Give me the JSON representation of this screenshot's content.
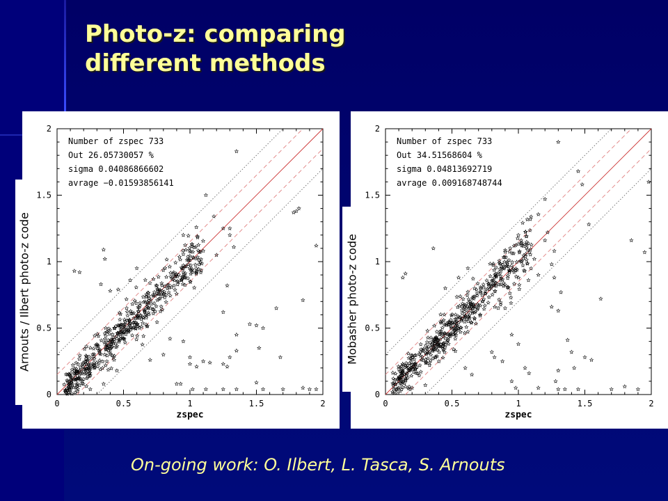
{
  "slide": {
    "title_line1": "Photo-z: comparing",
    "title_line2": "different methods",
    "footer": "On-going work: O. Ilbert, L. Tasca, S. Arnouts",
    "colors": {
      "background": "#000066",
      "title": "#ffff99",
      "footer": "#ffff99"
    }
  },
  "chart_data": [
    {
      "type": "scatter",
      "xlabel": "zspec",
      "ylabel": "Arnouts / Ilbert photo-z code",
      "xlim": [
        0,
        2
      ],
      "ylim": [
        0,
        2
      ],
      "xticks": [
        "0",
        "0.5",
        "1",
        "1.5",
        "2"
      ],
      "yticks": [
        "0",
        "0.5",
        "1",
        "1.5",
        "2"
      ],
      "stats": [
        "Number of zspec 733",
        "Out 26.05730057 %",
        "sigma 0.04086866602",
        "avrage −0.01593856141"
      ],
      "marker": "star",
      "reference_lines": [
        "1:1 line",
        "dashed envelope",
        "dotted envelope"
      ],
      "outliers": [
        [
          0.35,
          1.09
        ],
        [
          0.36,
          1.02
        ],
        [
          0.13,
          0.93
        ],
        [
          0.17,
          0.92
        ],
        [
          0.33,
          0.83
        ],
        [
          0.4,
          0.78
        ],
        [
          0.46,
          0.79
        ],
        [
          0.55,
          0.86
        ],
        [
          0.6,
          0.95
        ],
        [
          0.95,
          1.2
        ],
        [
          1.12,
          1.5
        ],
        [
          1.35,
          1.83
        ],
        [
          1.18,
          1.34
        ],
        [
          1.25,
          1.25
        ],
        [
          1.3,
          1.25
        ],
        [
          1.2,
          1.05
        ],
        [
          1.3,
          1.2
        ],
        [
          1.33,
          1.11
        ],
        [
          1.28,
          0.82
        ],
        [
          1.25,
          0.62
        ],
        [
          1.3,
          0.28
        ],
        [
          1.35,
          0.45
        ],
        [
          1.35,
          0.33
        ],
        [
          1.35,
          0.04
        ],
        [
          1.45,
          0.53
        ],
        [
          1.52,
          0.35
        ],
        [
          1.5,
          0.52
        ],
        [
          1.55,
          0.5
        ],
        [
          1.65,
          0.65
        ],
        [
          1.68,
          0.28
        ],
        [
          1.7,
          0.04
        ],
        [
          1.78,
          1.37
        ],
        [
          1.8,
          1.38
        ],
        [
          1.82,
          1.4
        ],
        [
          1.85,
          0.71
        ],
        [
          1.9,
          0.04
        ],
        [
          1.95,
          1.12
        ],
        [
          1.0,
          0.23
        ],
        [
          1.05,
          0.21
        ],
        [
          1.1,
          0.25
        ],
        [
          1.15,
          0.24
        ],
        [
          1.25,
          0.23
        ],
        [
          1.28,
          0.21
        ],
        [
          1.02,
          0.04
        ],
        [
          1.12,
          0.04
        ],
        [
          1.25,
          0.04
        ],
        [
          0.9,
          0.08
        ],
        [
          0.93,
          0.08
        ],
        [
          1.0,
          0.28
        ],
        [
          1.5,
          0.09
        ],
        [
          1.55,
          0.04
        ],
        [
          0.35,
          0.08
        ],
        [
          0.25,
          0.04
        ],
        [
          0.45,
          0.18
        ],
        [
          1.85,
          0.05
        ],
        [
          0.7,
          0.26
        ],
        [
          0.8,
          0.3
        ],
        [
          1.95,
          0.04
        ],
        [
          0.95,
          0.4
        ],
        [
          0.85,
          0.42
        ]
      ]
    },
    {
      "type": "scatter",
      "xlabel": "zspec",
      "ylabel": "Mobasher photo-z code",
      "xlim": [
        0,
        2
      ],
      "ylim": [
        0,
        2
      ],
      "xticks": [
        "0",
        "0.5",
        "1",
        "1.5",
        "2"
      ],
      "yticks": [
        "0",
        "0.5",
        "1",
        "1.5",
        "2"
      ],
      "stats": [
        "Number of zspec 733",
        "Out 34.51568604 %",
        "sigma 0.04813692719",
        "avrage 0.009168748744"
      ],
      "marker": "star",
      "reference_lines": [
        "1:1 line",
        "dashed envelope",
        "dotted envelope"
      ],
      "outliers": [
        [
          0.36,
          1.1
        ],
        [
          0.15,
          0.91
        ],
        [
          0.13,
          0.88
        ],
        [
          0.45,
          0.8
        ],
        [
          0.55,
          0.88
        ],
        [
          0.62,
          0.95
        ],
        [
          1.0,
          1.2
        ],
        [
          1.2,
          1.47
        ],
        [
          1.3,
          1.9
        ],
        [
          1.45,
          1.68
        ],
        [
          1.48,
          1.58
        ],
        [
          1.2,
          1.16
        ],
        [
          1.27,
          1.08
        ],
        [
          1.12,
          1.02
        ],
        [
          1.25,
          0.98
        ],
        [
          1.27,
          0.88
        ],
        [
          1.32,
          0.77
        ],
        [
          1.25,
          0.66
        ],
        [
          1.3,
          0.63
        ],
        [
          1.37,
          0.41
        ],
        [
          1.4,
          0.32
        ],
        [
          1.5,
          0.28
        ],
        [
          1.55,
          0.26
        ],
        [
          1.42,
          0.2
        ],
        [
          1.3,
          0.18
        ],
        [
          1.28,
          0.1
        ],
        [
          1.08,
          0.16
        ],
        [
          1.05,
          0.2
        ],
        [
          0.95,
          0.1
        ],
        [
          0.98,
          0.05
        ],
        [
          1.15,
          0.05
        ],
        [
          0.88,
          0.25
        ],
        [
          0.8,
          0.32
        ],
        [
          0.82,
          0.28
        ],
        [
          1.3,
          0.04
        ],
        [
          1.35,
          0.04
        ],
        [
          1.45,
          0.04
        ],
        [
          1.7,
          0.04
        ],
        [
          1.8,
          0.06
        ],
        [
          1.9,
          0.04
        ],
        [
          1.85,
          1.16
        ],
        [
          1.95,
          1.07
        ],
        [
          1.98,
          1.6
        ],
        [
          1.53,
          1.28
        ],
        [
          1.62,
          0.72
        ],
        [
          0.95,
          0.45
        ],
        [
          0.3,
          0.07
        ],
        [
          0.2,
          0.05
        ],
        [
          0.6,
          0.2
        ],
        [
          0.65,
          0.15
        ],
        [
          1.0,
          0.38
        ],
        [
          1.15,
          0.9
        ],
        [
          1.22,
          1.22
        ],
        [
          0.9,
          0.65
        ]
      ]
    }
  ]
}
